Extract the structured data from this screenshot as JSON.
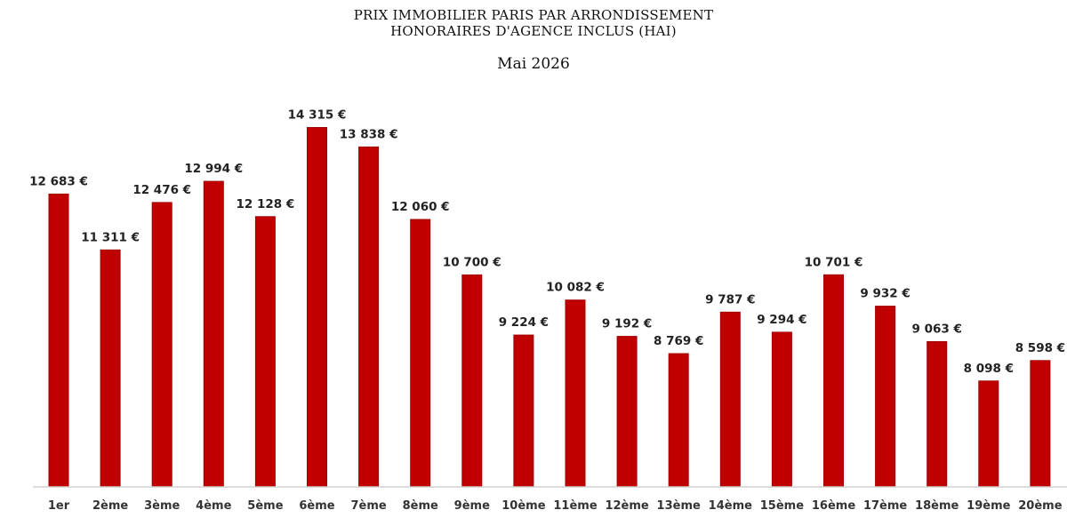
{
  "chart_data": {
    "type": "bar",
    "title_lines": [
      "PRIX IMMOBILIER PARIS PAR ARRONDISSEMENT",
      "HONORAIRES D'AGENCE INCLUS (HAI)"
    ],
    "subtitle": "Mai 2026",
    "categories": [
      "1er",
      "2ème",
      "3ème",
      "4ème",
      "5ème",
      "6ème",
      "7ème",
      "8ème",
      "9ème",
      "10ème",
      "11ème",
      "12ème",
      "13ème",
      "14ème",
      "15ème",
      "16ème",
      "17ème",
      "18ème",
      "19ème",
      "20ème"
    ],
    "values": [
      12683,
      11311,
      12476,
      12994,
      12128,
      14315,
      13838,
      12060,
      10700,
      9224,
      10082,
      9192,
      8769,
      9787,
      9294,
      10701,
      9932,
      9063,
      8098,
      8598
    ],
    "value_labels": [
      "12 683 €",
      "11 311 €",
      "12 476 €",
      "12 994 €",
      "12 128 €",
      "14 315 €",
      "13 838 €",
      "12 060 €",
      "10 700 €",
      "9 224 €",
      "10 082 €",
      "9 192 €",
      "8 769 €",
      "9 787 €",
      "9 294 €",
      "10 701 €",
      "9 932 €",
      "9 063 €",
      "8 098 €",
      "8 598 €"
    ],
    "ylim": [
      5500,
      14500
    ],
    "bar_color": "#c00000",
    "grid": false,
    "xlabel": "",
    "ylabel": ""
  }
}
